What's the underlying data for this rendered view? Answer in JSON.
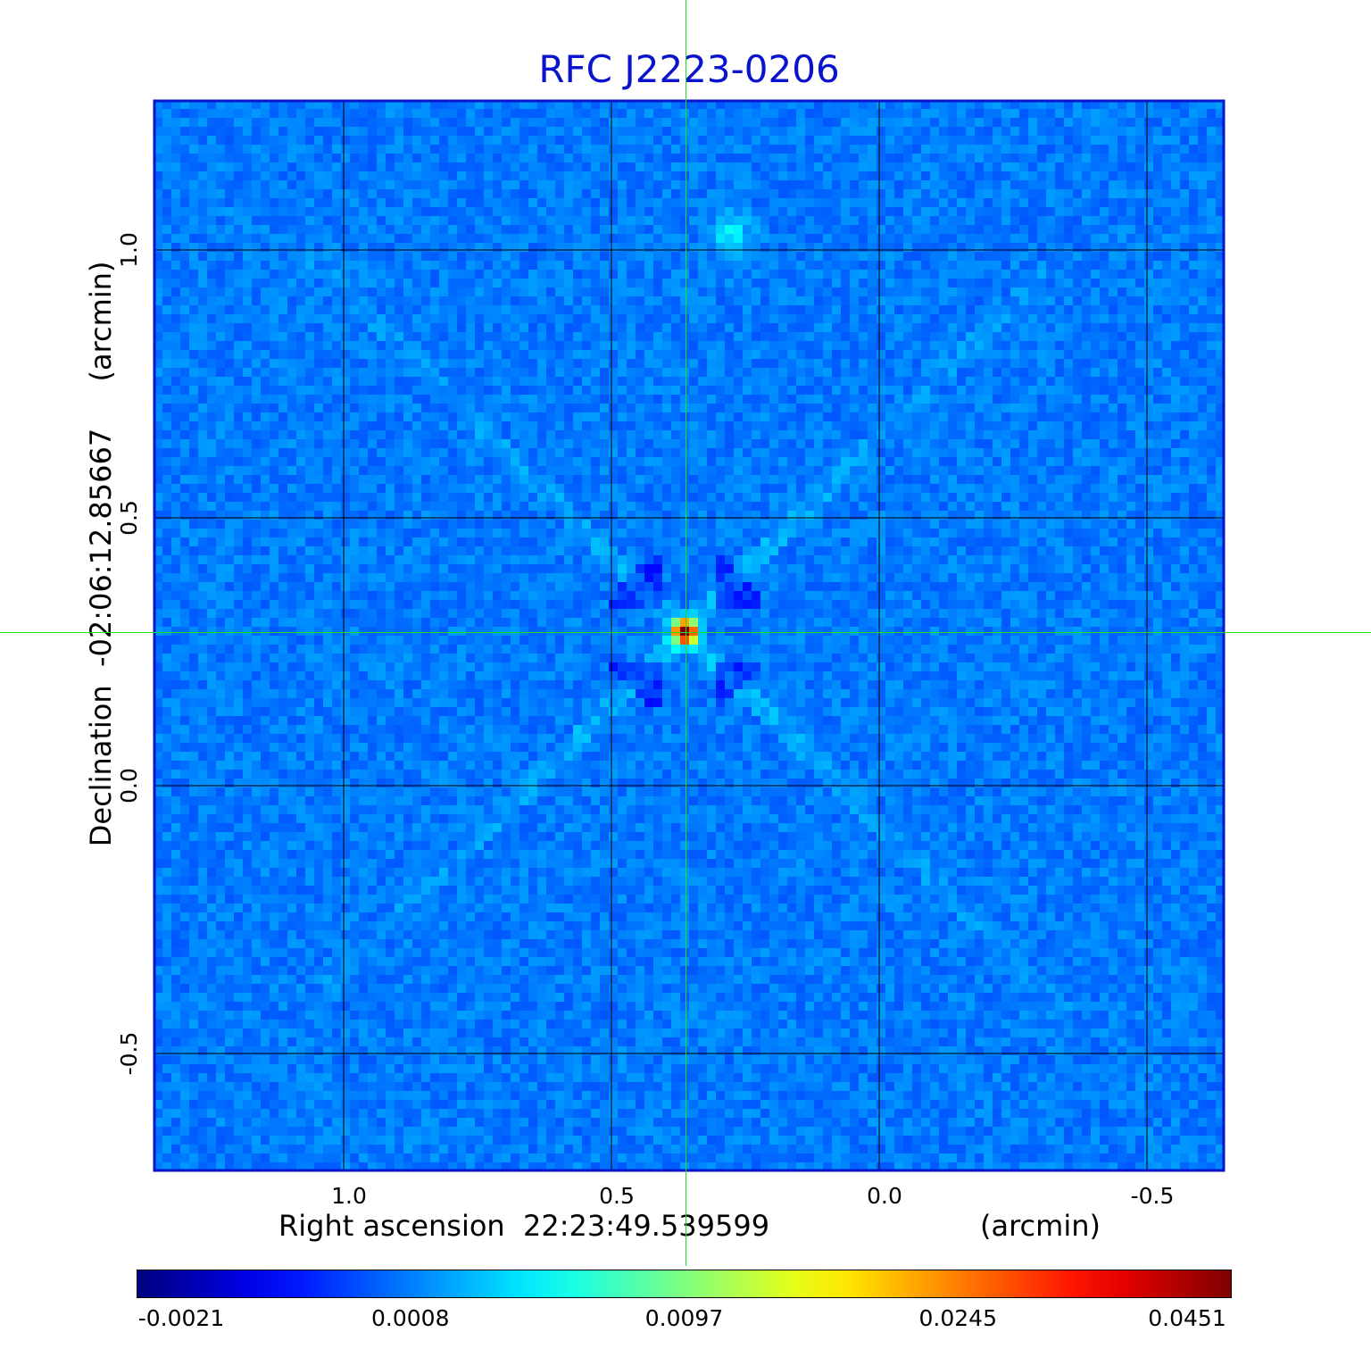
{
  "chart_data": {
    "type": "heatmap",
    "title": "RFC J2223-0206",
    "xlabel": "Right ascension  22:23:49.539599",
    "xunit": "(arcmin)",
    "ylabel": "Declination  -02:06:12.85667",
    "yunit": "(arcmin)",
    "x_ticks": [
      "1.0",
      "0.5",
      "0.0",
      "-0.5"
    ],
    "y_ticks": [
      "1.0",
      "0.5",
      "0.0",
      "-0.5"
    ],
    "x_tick_values": [
      1.0,
      0.5,
      0.0,
      -0.5
    ],
    "y_tick_values": [
      1.0,
      0.5,
      0.0,
      -0.5
    ],
    "xlim": [
      1.355,
      -0.645
    ],
    "ylim": [
      -0.72,
      1.28
    ],
    "grid": true,
    "colormap": "jet",
    "colorbar_ticks": [
      "-0.0021",
      "0.0008",
      "0.0097",
      "0.0245",
      "0.0451"
    ],
    "colorbar_range": [
      -0.0021,
      0.0451
    ],
    "peak": {
      "x": 0.362,
      "y": 0.287,
      "value": 0.0451
    },
    "secondary_blob": {
      "x": 0.277,
      "y": 1.03
    },
    "crosshair": {
      "x": 0.362,
      "y": 0.287
    }
  },
  "colors": {
    "title": "#0a14cc",
    "frame": "#0a14cc",
    "grid": "#000000",
    "crosshair": "#22dd22",
    "background_map": "#1e6ef0"
  }
}
